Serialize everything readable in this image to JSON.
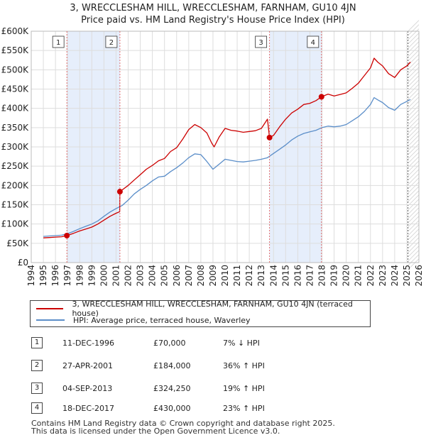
{
  "chart_data": {
    "type": "line",
    "title": "3, WRECCLESHAM HILL, WRECCLESHAM, FARNHAM, GU10 4JN",
    "subtitle": "Price paid vs. HM Land Registry's House Price Index (HPI)",
    "xlim": [
      1994,
      2026
    ],
    "ylim": [
      0,
      600000
    ],
    "x_ticks": [
      "1994",
      "1995",
      "1996",
      "1997",
      "1998",
      "1999",
      "2000",
      "2001",
      "2002",
      "2003",
      "2004",
      "2005",
      "2006",
      "2007",
      "2008",
      "2009",
      "2010",
      "2011",
      "2012",
      "2013",
      "2014",
      "2015",
      "2016",
      "2017",
      "2018",
      "2019",
      "2020",
      "2021",
      "2022",
      "2023",
      "2024",
      "2025",
      "2026"
    ],
    "y_ticks": [
      {
        "value": 0,
        "label": "£0"
      },
      {
        "value": 50000,
        "label": "£50K"
      },
      {
        "value": 100000,
        "label": "£100K"
      },
      {
        "value": 150000,
        "label": "£150K"
      },
      {
        "value": 200000,
        "label": "£200K"
      },
      {
        "value": 250000,
        "label": "£250K"
      },
      {
        "value": 300000,
        "label": "£300K"
      },
      {
        "value": 350000,
        "label": "£350K"
      },
      {
        "value": 400000,
        "label": "£400K"
      },
      {
        "value": 450000,
        "label": "£450K"
      },
      {
        "value": 500000,
        "label": "£500K"
      },
      {
        "value": 550000,
        "label": "£550K"
      },
      {
        "value": 600000,
        "label": "£600K"
      }
    ],
    "grid": true,
    "shaded_periods": [
      [
        1996.94,
        2001.32
      ],
      [
        2013.67,
        2017.96
      ]
    ],
    "forecast_start": 2025.1,
    "series": [
      {
        "name": "3, WRECCLESHAM HILL, WRECCLESHAM, FARNHAM, GU10 4JN (terraced house)",
        "color": "#cc0000",
        "points": [
          [
            1995.0,
            64000
          ],
          [
            1995.5,
            65000
          ],
          [
            1996.0,
            66000
          ],
          [
            1996.5,
            67000
          ],
          [
            1996.94,
            70000
          ],
          [
            1997.5,
            76000
          ],
          [
            1998.0,
            82000
          ],
          [
            1998.5,
            87000
          ],
          [
            1999.0,
            92000
          ],
          [
            1999.5,
            100000
          ],
          [
            2000.0,
            110000
          ],
          [
            2000.5,
            120000
          ],
          [
            2001.0,
            128000
          ],
          [
            2001.3,
            132000
          ],
          [
            2001.32,
            184000
          ],
          [
            2002.0,
            200000
          ],
          [
            2002.5,
            214000
          ],
          [
            2003.0,
            228000
          ],
          [
            2003.5,
            242000
          ],
          [
            2004.0,
            252000
          ],
          [
            2004.5,
            264000
          ],
          [
            2005.0,
            270000
          ],
          [
            2005.5,
            288000
          ],
          [
            2006.0,
            298000
          ],
          [
            2006.5,
            320000
          ],
          [
            2007.0,
            345000
          ],
          [
            2007.5,
            358000
          ],
          [
            2008.0,
            350000
          ],
          [
            2008.5,
            336000
          ],
          [
            2008.9,
            310000
          ],
          [
            2009.1,
            300000
          ],
          [
            2009.5,
            325000
          ],
          [
            2010.0,
            348000
          ],
          [
            2010.5,
            343000
          ],
          [
            2011.0,
            341000
          ],
          [
            2011.5,
            338000
          ],
          [
            2012.0,
            340000
          ],
          [
            2012.5,
            342000
          ],
          [
            2013.0,
            348000
          ],
          [
            2013.5,
            372000
          ],
          [
            2013.67,
            324250
          ],
          [
            2014.0,
            330000
          ],
          [
            2014.5,
            352000
          ],
          [
            2015.0,
            372000
          ],
          [
            2015.5,
            388000
          ],
          [
            2016.0,
            398000
          ],
          [
            2016.5,
            410000
          ],
          [
            2017.0,
            413000
          ],
          [
            2017.5,
            420000
          ],
          [
            2017.96,
            430000
          ],
          [
            2018.5,
            437000
          ],
          [
            2019.0,
            432000
          ],
          [
            2019.5,
            436000
          ],
          [
            2020.0,
            440000
          ],
          [
            2020.5,
            452000
          ],
          [
            2021.0,
            465000
          ],
          [
            2021.5,
            485000
          ],
          [
            2022.0,
            505000
          ],
          [
            2022.3,
            530000
          ],
          [
            2022.6,
            520000
          ],
          [
            2023.0,
            510000
          ],
          [
            2023.5,
            490000
          ],
          [
            2024.0,
            480000
          ],
          [
            2024.5,
            500000
          ],
          [
            2025.0,
            510000
          ],
          [
            2025.3,
            520000
          ]
        ]
      },
      {
        "name": "HPI: Average price, terraced house, Waverley",
        "color": "#5b8ec9",
        "points": [
          [
            1995.0,
            68000
          ],
          [
            1995.5,
            69000
          ],
          [
            1996.0,
            70000
          ],
          [
            1996.5,
            71000
          ],
          [
            1997.0,
            75000
          ],
          [
            1997.5,
            81000
          ],
          [
            1998.0,
            88000
          ],
          [
            1998.5,
            94000
          ],
          [
            1999.0,
            100000
          ],
          [
            1999.5,
            108000
          ],
          [
            2000.0,
            120000
          ],
          [
            2000.5,
            131000
          ],
          [
            2001.0,
            140000
          ],
          [
            2001.5,
            148000
          ],
          [
            2002.0,
            162000
          ],
          [
            2002.5,
            178000
          ],
          [
            2003.0,
            190000
          ],
          [
            2003.5,
            200000
          ],
          [
            2004.0,
            212000
          ],
          [
            2004.5,
            222000
          ],
          [
            2005.0,
            224000
          ],
          [
            2005.5,
            236000
          ],
          [
            2006.0,
            246000
          ],
          [
            2006.5,
            258000
          ],
          [
            2007.0,
            272000
          ],
          [
            2007.5,
            282000
          ],
          [
            2008.0,
            280000
          ],
          [
            2008.5,
            262000
          ],
          [
            2009.0,
            242000
          ],
          [
            2009.5,
            255000
          ],
          [
            2010.0,
            268000
          ],
          [
            2010.5,
            265000
          ],
          [
            2011.0,
            262000
          ],
          [
            2011.5,
            261000
          ],
          [
            2012.0,
            263000
          ],
          [
            2012.5,
            265000
          ],
          [
            2013.0,
            268000
          ],
          [
            2013.5,
            272000
          ],
          [
            2014.0,
            283000
          ],
          [
            2014.5,
            294000
          ],
          [
            2015.0,
            305000
          ],
          [
            2015.5,
            318000
          ],
          [
            2016.0,
            328000
          ],
          [
            2016.5,
            335000
          ],
          [
            2017.0,
            339000
          ],
          [
            2017.5,
            343000
          ],
          [
            2018.0,
            350000
          ],
          [
            2018.5,
            354000
          ],
          [
            2019.0,
            352000
          ],
          [
            2019.5,
            354000
          ],
          [
            2020.0,
            358000
          ],
          [
            2020.5,
            368000
          ],
          [
            2021.0,
            378000
          ],
          [
            2021.5,
            392000
          ],
          [
            2022.0,
            410000
          ],
          [
            2022.3,
            428000
          ],
          [
            2022.6,
            422000
          ],
          [
            2023.0,
            415000
          ],
          [
            2023.5,
            402000
          ],
          [
            2024.0,
            395000
          ],
          [
            2024.5,
            410000
          ],
          [
            2025.0,
            418000
          ],
          [
            2025.3,
            423000
          ]
        ]
      }
    ],
    "markers": [
      {
        "id": "1",
        "x": 1996.94,
        "value": 70000
      },
      {
        "id": "2",
        "x": 2001.32,
        "value": 184000
      },
      {
        "id": "3",
        "x": 2013.67,
        "value": 324250
      },
      {
        "id": "4",
        "x": 2017.96,
        "value": 430000
      }
    ]
  },
  "legend": {
    "price_paid": "3, WRECCLESHAM HILL, WRECCLESHAM, FARNHAM, GU10 4JN (terraced house)",
    "hpi": "HPI: Average price, terraced house, Waverley"
  },
  "transactions": [
    {
      "id": "1",
      "date": "11-DEC-1996",
      "price": "£70,000",
      "change": "7% ↓ HPI"
    },
    {
      "id": "2",
      "date": "27-APR-2001",
      "price": "£184,000",
      "change": "36% ↑ HPI"
    },
    {
      "id": "3",
      "date": "04-SEP-2013",
      "price": "£324,250",
      "change": "19% ↑ HPI"
    },
    {
      "id": "4",
      "date": "18-DEC-2017",
      "price": "£430,000",
      "change": "23% ↑ HPI"
    }
  ],
  "footer": {
    "line1": "Contains HM Land Registry data © Crown copyright and database right 2025.",
    "line2": "This data is licensed under the Open Government Licence v3.0."
  }
}
